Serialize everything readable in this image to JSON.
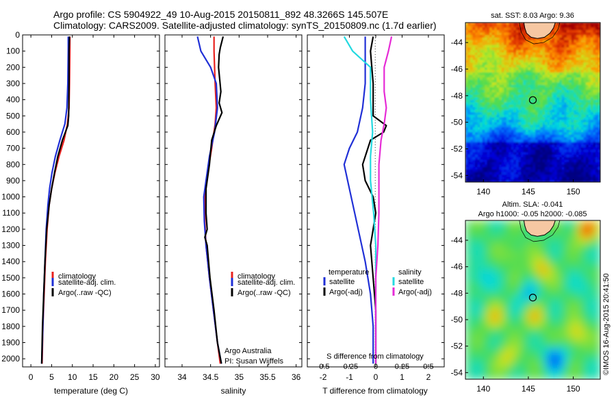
{
  "title": {
    "line1": "Argo profile: CS 5904922_49 10-Aug-2015 20150811_892 48.3266S 145.507E",
    "line2": "Climatology: CARS2009. Satellite-adjusted climatology: synTS_20150809.nc (1.7d earlier)"
  },
  "colors": {
    "climatology": "#e8211e",
    "satellite": "#1f2fd6",
    "argo": "#000000",
    "sat_salinity": "#23d9e0",
    "argo_adj_salinity": "#e62ad6"
  },
  "chart_data": [
    {
      "id": "temperature",
      "type": "line",
      "xlabel": "temperature (deg C)",
      "xlim": [
        -2,
        31
      ],
      "xticks": [
        0,
        5,
        10,
        15,
        20,
        25,
        30
      ],
      "ylim": [
        2050,
        0
      ],
      "yticks": [
        0,
        100,
        200,
        300,
        400,
        500,
        600,
        700,
        800,
        900,
        1000,
        1100,
        1200,
        1300,
        1400,
        1500,
        1600,
        1700,
        1800,
        1900,
        2000
      ],
      "legend": [
        "climatology",
        "satellite-adj. clim.",
        "Argo(..raw -QC)"
      ],
      "series": [
        {
          "name": "climatology",
          "color": "#e8211e",
          "points": [
            [
              9.4,
              10
            ],
            [
              9.4,
              100
            ],
            [
              9.3,
              300
            ],
            [
              9.2,
              450
            ],
            [
              8.8,
              550
            ],
            [
              8.0,
              650
            ],
            [
              6.8,
              750
            ],
            [
              5.8,
              850
            ],
            [
              5.0,
              950
            ],
            [
              4.4,
              1050
            ],
            [
              3.9,
              1200
            ],
            [
              3.5,
              1400
            ],
            [
              3.2,
              1600
            ],
            [
              2.9,
              1800
            ],
            [
              2.7,
              2030
            ]
          ]
        },
        {
          "name": "satellite-adj. clim.",
          "color": "#1f2fd6",
          "points": [
            [
              9.0,
              10
            ],
            [
              9.0,
              100
            ],
            [
              8.9,
              300
            ],
            [
              8.7,
              450
            ],
            [
              8.2,
              550
            ],
            [
              7.0,
              650
            ],
            [
              5.9,
              750
            ],
            [
              5.1,
              850
            ],
            [
              4.5,
              950
            ],
            [
              4.1,
              1050
            ],
            [
              3.7,
              1200
            ],
            [
              3.4,
              1400
            ],
            [
              3.1,
              1600
            ],
            [
              2.9,
              1800
            ],
            [
              2.6,
              2030
            ]
          ]
        },
        {
          "name": "Argo(..raw -QC)",
          "color": "#000000",
          "points": [
            [
              9.3,
              10
            ],
            [
              9.2,
              100
            ],
            [
              9.2,
              300
            ],
            [
              9.1,
              500
            ],
            [
              8.9,
              560
            ],
            [
              7.6,
              650
            ],
            [
              6.5,
              750
            ],
            [
              5.7,
              850
            ],
            [
              5.0,
              950
            ],
            [
              4.4,
              1050
            ],
            [
              3.8,
              1200
            ],
            [
              3.4,
              1400
            ],
            [
              3.1,
              1600
            ],
            [
              2.8,
              1800
            ],
            [
              2.6,
              2030
            ]
          ]
        }
      ]
    },
    {
      "id": "salinity",
      "type": "line",
      "xlabel": "salinity",
      "xlim": [
        33.7,
        36.1
      ],
      "xticks": [
        34,
        34.5,
        35,
        35.5,
        36
      ],
      "xticklabels": [
        "34",
        "34.5",
        "35",
        "35.5",
        "36"
      ],
      "ylim": [
        2050,
        0
      ],
      "legend": [
        "climatology",
        "satellite-adj. clim.",
        "Argo(..raw -QC)"
      ],
      "annotation": [
        "Argo Australia",
        "PI: Susan Wijffels"
      ],
      "series": [
        {
          "name": "climatology",
          "color": "#e8211e",
          "points": [
            [
              34.56,
              10
            ],
            [
              34.56,
              100
            ],
            [
              34.58,
              300
            ],
            [
              34.6,
              450
            ],
            [
              34.58,
              550
            ],
            [
              34.52,
              700
            ],
            [
              34.45,
              850
            ],
            [
              34.4,
              1000
            ],
            [
              34.4,
              1150
            ],
            [
              34.42,
              1300
            ],
            [
              34.48,
              1500
            ],
            [
              34.55,
              1700
            ],
            [
              34.62,
              1900
            ],
            [
              34.67,
              2030
            ]
          ]
        },
        {
          "name": "satellite-adj. clim.",
          "color": "#1f2fd6",
          "points": [
            [
              34.27,
              10
            ],
            [
              34.33,
              100
            ],
            [
              34.5,
              200
            ],
            [
              34.6,
              300
            ],
            [
              34.62,
              450
            ],
            [
              34.57,
              600
            ],
            [
              34.48,
              750
            ],
            [
              34.42,
              900
            ],
            [
              34.38,
              1000
            ],
            [
              34.39,
              1150
            ],
            [
              34.42,
              1300
            ],
            [
              34.48,
              1500
            ],
            [
              34.55,
              1700
            ],
            [
              34.62,
              1900
            ],
            [
              34.69,
              2030
            ]
          ]
        },
        {
          "name": "Argo(..raw -QC)",
          "color": "#000000",
          "points": [
            [
              34.72,
              10
            ],
            [
              34.67,
              80
            ],
            [
              34.65,
              120
            ],
            [
              34.64,
              200
            ],
            [
              34.68,
              350
            ],
            [
              34.65,
              420
            ],
            [
              34.7,
              480
            ],
            [
              34.6,
              560
            ],
            [
              34.52,
              650
            ],
            [
              34.48,
              800
            ],
            [
              34.42,
              950
            ],
            [
              34.42,
              1100
            ],
            [
              34.44,
              1200
            ],
            [
              34.4,
              1250
            ],
            [
              34.44,
              1300
            ],
            [
              34.49,
              1500
            ],
            [
              34.56,
              1700
            ],
            [
              34.62,
              1900
            ],
            [
              34.69,
              2030
            ]
          ]
        }
      ]
    },
    {
      "id": "difference",
      "type": "line",
      "xlabel": "T difference from climatology",
      "xlabel2": "S difference from climatology",
      "xlim": [
        -2.6,
        2.6
      ],
      "xticks": [
        -2,
        -1,
        0,
        1,
        2
      ],
      "xticks_S": [
        -0.5,
        -0.25,
        0,
        0.25,
        0.5
      ],
      "xticklabels_S": [
        "-0.5",
        "-0.25",
        "0",
        "0.25",
        "0.5"
      ],
      "ylim": [
        2050,
        0
      ],
      "legend": {
        "temperature_heading": "temperature",
        "salinity_heading": "salinity",
        "temperature": [
          "satellite",
          "Argo(-adj)"
        ],
        "salinity": [
          "satellite",
          "Argo(-adj)"
        ]
      },
      "series": [
        {
          "name": "temperature satellite",
          "color": "#1f2fd6",
          "units": "T",
          "points": [
            [
              -0.4,
              10
            ],
            [
              -0.4,
              100
            ],
            [
              -0.4,
              300
            ],
            [
              -0.5,
              450
            ],
            [
              -0.7,
              600
            ],
            [
              -1.0,
              700
            ],
            [
              -1.2,
              800
            ],
            [
              -1.0,
              950
            ],
            [
              -0.8,
              1100
            ],
            [
              -0.6,
              1250
            ],
            [
              -0.4,
              1400
            ],
            [
              -0.2,
              1600
            ],
            [
              -0.1,
              1800
            ],
            [
              -0.1,
              2030
            ]
          ]
        },
        {
          "name": "temperature Argo(-adj)",
          "color": "#000000",
          "units": "T",
          "points": [
            [
              -0.1,
              10
            ],
            [
              -0.2,
              100
            ],
            [
              -0.1,
              300
            ],
            [
              -0.1,
              500
            ],
            [
              0.4,
              560
            ],
            [
              0.3,
              600
            ],
            [
              -0.2,
              650
            ],
            [
              -0.3,
              700
            ],
            [
              -0.5,
              800
            ],
            [
              -0.4,
              900
            ],
            [
              -0.1,
              1000
            ],
            [
              0.0,
              1100
            ],
            [
              -0.1,
              1200
            ],
            [
              -0.2,
              1300
            ],
            [
              -0.1,
              1500
            ],
            [
              0.0,
              1700
            ],
            [
              0.0,
              2030
            ]
          ]
        },
        {
          "name": "salinity satellite",
          "color": "#23d9e0",
          "units": "S",
          "points": [
            [
              -0.3,
              10
            ],
            [
              -0.22,
              100
            ],
            [
              -0.05,
              200
            ],
            [
              -0.05,
              400
            ],
            [
              -0.03,
              600
            ],
            [
              -0.05,
              750
            ],
            [
              -0.05,
              900
            ],
            [
              -0.02,
              1100
            ],
            [
              0.0,
              1300
            ],
            [
              0.0,
              1500
            ],
            [
              0.0,
              1700
            ],
            [
              0.0,
              1900
            ],
            [
              0.0,
              2030
            ]
          ]
        },
        {
          "name": "salinity Argo(-adj)",
          "color": "#e62ad6",
          "units": "S",
          "points": [
            [
              0.15,
              10
            ],
            [
              0.12,
              100
            ],
            [
              0.08,
              200
            ],
            [
              0.08,
              350
            ],
            [
              0.1,
              450
            ],
            [
              0.08,
              550
            ],
            [
              0.05,
              650
            ],
            [
              0.03,
              800
            ],
            [
              0.03,
              950
            ],
            [
              0.03,
              1100
            ],
            [
              0.02,
              1300
            ],
            [
              0.0,
              1500
            ],
            [
              0.0,
              2030
            ]
          ]
        }
      ]
    },
    {
      "id": "sst_map",
      "type": "heatmap",
      "title": "sat. SST: 8.03 Argo: 9.36",
      "xlim": [
        138,
        153
      ],
      "ylim": [
        -54.5,
        -42.5
      ],
      "xticks": [
        140,
        145,
        150
      ],
      "yticks": [
        -44,
        -46,
        -48,
        -50,
        -52,
        -54
      ],
      "ytick_labels": [
        "-44",
        "-46",
        "-48",
        "-50",
        "-52",
        "-54"
      ],
      "float_position": [
        145.5,
        -48.33
      ]
    },
    {
      "id": "sla_map",
      "type": "heatmap",
      "title": "Altim. SLA: -0.041",
      "subtitle": "Argo h1000: -0.05 h2000: -0.085",
      "xlim": [
        138,
        153
      ],
      "ylim": [
        -54.5,
        -42.5
      ],
      "xticks": [
        140,
        145,
        150
      ],
      "yticks": [
        -44,
        -46,
        -48,
        -50,
        -52,
        -54
      ],
      "ytick_labels": [
        "-44",
        "-46",
        "-48",
        "-50",
        "-52",
        "-54"
      ],
      "float_position": [
        145.5,
        -48.33
      ]
    }
  ],
  "credit": "©IMOS 16-Aug-2015 20:41:50"
}
